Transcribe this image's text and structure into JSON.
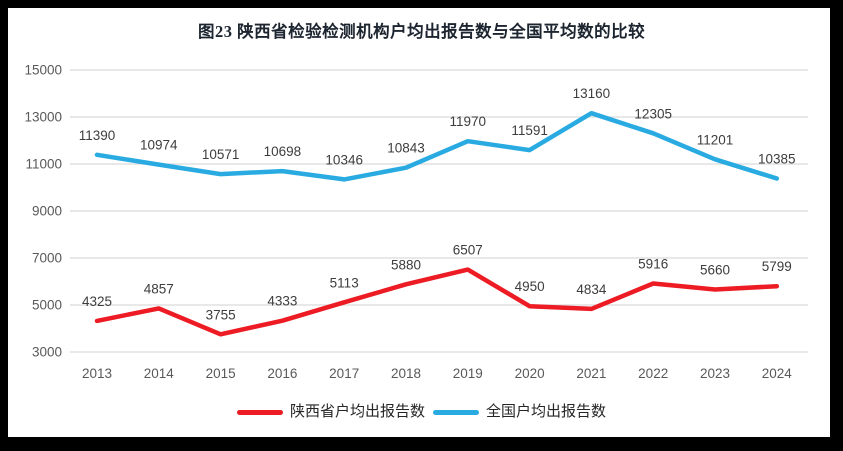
{
  "frame": {
    "border_color": "#000000",
    "background": "#ffffff"
  },
  "chart_data": {
    "type": "line",
    "title": "图23 陕西省检验检测机构户均出报告数与全国平均数的比较",
    "categories": [
      "2013",
      "2014",
      "2015",
      "2016",
      "2017",
      "2018",
      "2019",
      "2020",
      "2021",
      "2022",
      "2023",
      "2024"
    ],
    "series": [
      {
        "name": "陕西省户均出报告数",
        "color": "#ED1C24",
        "values": [
          4325,
          4857,
          3755,
          4333,
          5113,
          5880,
          6507,
          4950,
          4834,
          5916,
          5660,
          5799
        ]
      },
      {
        "name": "全国户均出报告数",
        "color": "#29ABE2",
        "values": [
          11390,
          10974,
          10571,
          10698,
          10346,
          10843,
          11970,
          11591,
          13160,
          12305,
          11201,
          10385
        ]
      }
    ],
    "yticks": [
      3000,
      5000,
      7000,
      9000,
      11000,
      13000,
      15000
    ],
    "ylim": [
      3000,
      15000
    ],
    "grid": true,
    "data_labels": true,
    "legend_position": "bottom"
  }
}
